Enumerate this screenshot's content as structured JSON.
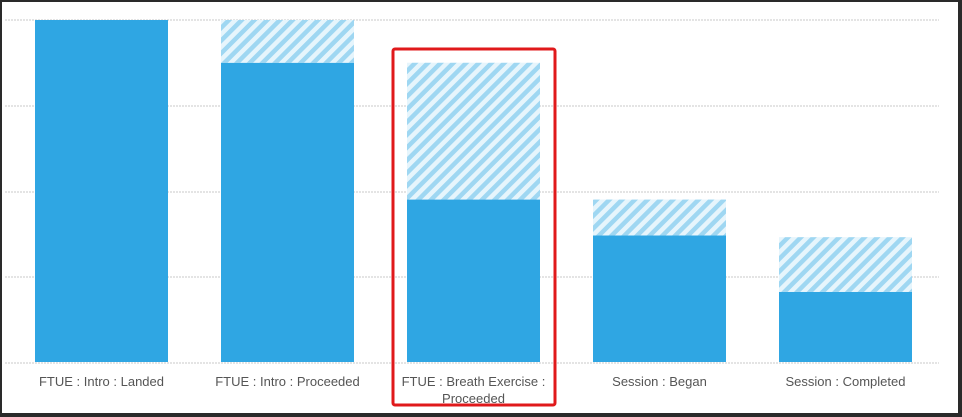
{
  "chart_data": {
    "type": "bar",
    "stacked": true,
    "categories": [
      [
        "FTUE : Intro : Landed"
      ],
      [
        "FTUE : Intro : Proceeded"
      ],
      [
        "FTUE : Breath Exercise :",
        "Proceeded"
      ],
      [
        "Session : Began"
      ],
      [
        "Session : Completed"
      ]
    ],
    "series": [
      {
        "values": [
          100,
          87.5,
          47.5,
          37,
          20.5
        ]
      },
      {
        "values": [
          0,
          12.5,
          40,
          10.5,
          16
        ]
      }
    ],
    "ylim": [
      0,
      100
    ],
    "grid": true,
    "highlight_index": 2,
    "colors": {
      "solid": "#2fa6e3",
      "hatch_stripe": "#9fd7f2",
      "hatch_bg": "#e6f5fc",
      "grid": "#c8c8c8",
      "highlight": "#e0191b",
      "frame_bg": "#2a2a2a"
    }
  }
}
